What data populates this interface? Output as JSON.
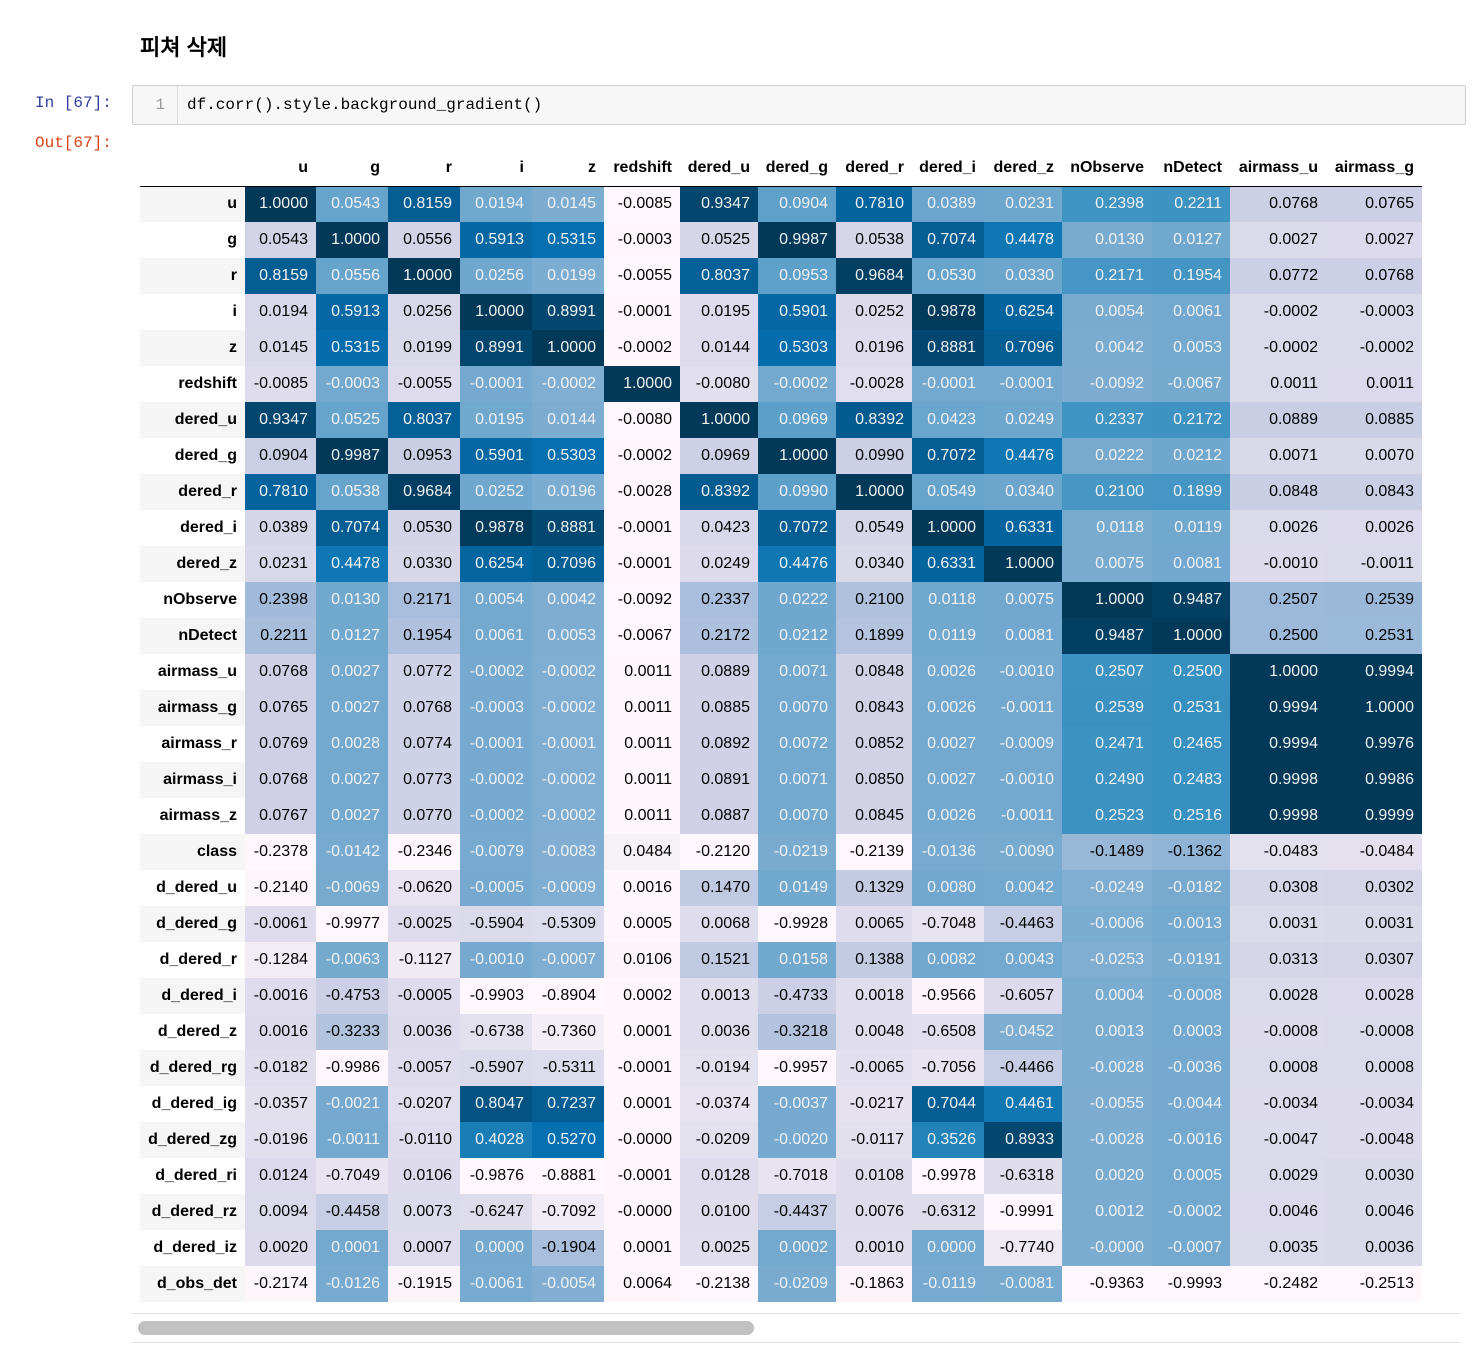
{
  "header": {
    "title": "피쳐 삭제"
  },
  "input_cell": {
    "prompt": "In [67]:",
    "line_number": "1",
    "code": "df.corr().style.background_gradient()"
  },
  "output_cell": {
    "prompt": "Out[67]:",
    "table": {
      "columns": [
        "u",
        "g",
        "r",
        "i",
        "z",
        "redshift",
        "dered_u",
        "dered_g",
        "dered_r",
        "dered_i",
        "dered_z",
        "nObserve",
        "nDetect",
        "airmass_u",
        "airmass_g"
      ],
      "rows": [
        {
          "index": "u",
          "cells": [
            "1.0000",
            "0.0543",
            "0.8159",
            "0.0194",
            "0.0145",
            "-0.0085",
            "0.9347",
            "0.0904",
            "0.7810",
            "0.0389",
            "0.0231",
            "0.2398",
            "0.2211",
            "0.0768",
            "0.0765"
          ]
        },
        {
          "index": "g",
          "cells": [
            "0.0543",
            "1.0000",
            "0.0556",
            "0.5913",
            "0.5315",
            "-0.0003",
            "0.0525",
            "0.9987",
            "0.0538",
            "0.7074",
            "0.4478",
            "0.0130",
            "0.0127",
            "0.0027",
            "0.0027"
          ]
        },
        {
          "index": "r",
          "cells": [
            "0.8159",
            "0.0556",
            "1.0000",
            "0.0256",
            "0.0199",
            "-0.0055",
            "0.8037",
            "0.0953",
            "0.9684",
            "0.0530",
            "0.0330",
            "0.2171",
            "0.1954",
            "0.0772",
            "0.0768"
          ]
        },
        {
          "index": "i",
          "cells": [
            "0.0194",
            "0.5913",
            "0.0256",
            "1.0000",
            "0.8991",
            "-0.0001",
            "0.0195",
            "0.5901",
            "0.0252",
            "0.9878",
            "0.6254",
            "0.0054",
            "0.0061",
            "-0.0002",
            "-0.0003"
          ]
        },
        {
          "index": "z",
          "cells": [
            "0.0145",
            "0.5315",
            "0.0199",
            "0.8991",
            "1.0000",
            "-0.0002",
            "0.0144",
            "0.5303",
            "0.0196",
            "0.8881",
            "0.7096",
            "0.0042",
            "0.0053",
            "-0.0002",
            "-0.0002"
          ]
        },
        {
          "index": "redshift",
          "cells": [
            "-0.0085",
            "-0.0003",
            "-0.0055",
            "-0.0001",
            "-0.0002",
            "1.0000",
            "-0.0080",
            "-0.0002",
            "-0.0028",
            "-0.0001",
            "-0.0001",
            "-0.0092",
            "-0.0067",
            "0.0011",
            "0.0011"
          ]
        },
        {
          "index": "dered_u",
          "cells": [
            "0.9347",
            "0.0525",
            "0.8037",
            "0.0195",
            "0.0144",
            "-0.0080",
            "1.0000",
            "0.0969",
            "0.8392",
            "0.0423",
            "0.0249",
            "0.2337",
            "0.2172",
            "0.0889",
            "0.0885"
          ]
        },
        {
          "index": "dered_g",
          "cells": [
            "0.0904",
            "0.9987",
            "0.0953",
            "0.5901",
            "0.5303",
            "-0.0002",
            "0.0969",
            "1.0000",
            "0.0990",
            "0.7072",
            "0.4476",
            "0.0222",
            "0.0212",
            "0.0071",
            "0.0070"
          ]
        },
        {
          "index": "dered_r",
          "cells": [
            "0.7810",
            "0.0538",
            "0.9684",
            "0.0252",
            "0.0196",
            "-0.0028",
            "0.8392",
            "0.0990",
            "1.0000",
            "0.0549",
            "0.0340",
            "0.2100",
            "0.1899",
            "0.0848",
            "0.0843"
          ]
        },
        {
          "index": "dered_i",
          "cells": [
            "0.0389",
            "0.7074",
            "0.0530",
            "0.9878",
            "0.8881",
            "-0.0001",
            "0.0423",
            "0.7072",
            "0.0549",
            "1.0000",
            "0.6331",
            "0.0118",
            "0.0119",
            "0.0026",
            "0.0026"
          ]
        },
        {
          "index": "dered_z",
          "cells": [
            "0.0231",
            "0.4478",
            "0.0330",
            "0.6254",
            "0.7096",
            "-0.0001",
            "0.0249",
            "0.4476",
            "0.0340",
            "0.6331",
            "1.0000",
            "0.0075",
            "0.0081",
            "-0.0010",
            "-0.0011"
          ]
        },
        {
          "index": "nObserve",
          "cells": [
            "0.2398",
            "0.0130",
            "0.2171",
            "0.0054",
            "0.0042",
            "-0.0092",
            "0.2337",
            "0.0222",
            "0.2100",
            "0.0118",
            "0.0075",
            "1.0000",
            "0.9487",
            "0.2507",
            "0.2539"
          ]
        },
        {
          "index": "nDetect",
          "cells": [
            "0.2211",
            "0.0127",
            "0.1954",
            "0.0061",
            "0.0053",
            "-0.0067",
            "0.2172",
            "0.0212",
            "0.1899",
            "0.0119",
            "0.0081",
            "0.9487",
            "1.0000",
            "0.2500",
            "0.2531"
          ]
        },
        {
          "index": "airmass_u",
          "cells": [
            "0.0768",
            "0.0027",
            "0.0772",
            "-0.0002",
            "-0.0002",
            "0.0011",
            "0.0889",
            "0.0071",
            "0.0848",
            "0.0026",
            "-0.0010",
            "0.2507",
            "0.2500",
            "1.0000",
            "0.9994"
          ]
        },
        {
          "index": "airmass_g",
          "cells": [
            "0.0765",
            "0.0027",
            "0.0768",
            "-0.0003",
            "-0.0002",
            "0.0011",
            "0.0885",
            "0.0070",
            "0.0843",
            "0.0026",
            "-0.0011",
            "0.2539",
            "0.2531",
            "0.9994",
            "1.0000"
          ]
        },
        {
          "index": "airmass_r",
          "cells": [
            "0.0769",
            "0.0028",
            "0.0774",
            "-0.0001",
            "-0.0001",
            "0.0011",
            "0.0892",
            "0.0072",
            "0.0852",
            "0.0027",
            "-0.0009",
            "0.2471",
            "0.2465",
            "0.9994",
            "0.9976"
          ]
        },
        {
          "index": "airmass_i",
          "cells": [
            "0.0768",
            "0.0027",
            "0.0773",
            "-0.0002",
            "-0.0002",
            "0.0011",
            "0.0891",
            "0.0071",
            "0.0850",
            "0.0027",
            "-0.0010",
            "0.2490",
            "0.2483",
            "0.9998",
            "0.9986"
          ]
        },
        {
          "index": "airmass_z",
          "cells": [
            "0.0767",
            "0.0027",
            "0.0770",
            "-0.0002",
            "-0.0002",
            "0.0011",
            "0.0887",
            "0.0070",
            "0.0845",
            "0.0026",
            "-0.0011",
            "0.2523",
            "0.2516",
            "0.9998",
            "0.9999"
          ]
        },
        {
          "index": "class",
          "cells": [
            "-0.2378",
            "-0.0142",
            "-0.2346",
            "-0.0079",
            "-0.0083",
            "0.0484",
            "-0.2120",
            "-0.0219",
            "-0.2139",
            "-0.0136",
            "-0.0090",
            "-0.1489",
            "-0.1362",
            "-0.0483",
            "-0.0484"
          ]
        },
        {
          "index": "d_dered_u",
          "cells": [
            "-0.2140",
            "-0.0069",
            "-0.0620",
            "-0.0005",
            "-0.0009",
            "0.0016",
            "0.1470",
            "0.0149",
            "0.1329",
            "0.0080",
            "0.0042",
            "-0.0249",
            "-0.0182",
            "0.0308",
            "0.0302"
          ]
        },
        {
          "index": "d_dered_g",
          "cells": [
            "-0.0061",
            "-0.9977",
            "-0.0025",
            "-0.5904",
            "-0.5309",
            "0.0005",
            "0.0068",
            "-0.9928",
            "0.0065",
            "-0.7048",
            "-0.4463",
            "-0.0006",
            "-0.0013",
            "0.0031",
            "0.0031"
          ]
        },
        {
          "index": "d_dered_r",
          "cells": [
            "-0.1284",
            "-0.0063",
            "-0.1127",
            "-0.0010",
            "-0.0007",
            "0.0106",
            "0.1521",
            "0.0158",
            "0.1388",
            "0.0082",
            "0.0043",
            "-0.0253",
            "-0.0191",
            "0.0313",
            "0.0307"
          ]
        },
        {
          "index": "d_dered_i",
          "cells": [
            "-0.0016",
            "-0.4753",
            "-0.0005",
            "-0.9903",
            "-0.8904",
            "0.0002",
            "0.0013",
            "-0.4733",
            "0.0018",
            "-0.9566",
            "-0.6057",
            "0.0004",
            "-0.0008",
            "0.0028",
            "0.0028"
          ]
        },
        {
          "index": "d_dered_z",
          "cells": [
            "0.0016",
            "-0.3233",
            "0.0036",
            "-0.6738",
            "-0.7360",
            "0.0001",
            "0.0036",
            "-0.3218",
            "0.0048",
            "-0.6508",
            "-0.0452",
            "0.0013",
            "0.0003",
            "-0.0008",
            "-0.0008"
          ]
        },
        {
          "index": "d_dered_rg",
          "cells": [
            "-0.0182",
            "-0.9986",
            "-0.0057",
            "-0.5907",
            "-0.5311",
            "-0.0001",
            "-0.0194",
            "-0.9957",
            "-0.0065",
            "-0.7056",
            "-0.4466",
            "-0.0028",
            "-0.0036",
            "0.0008",
            "0.0008"
          ]
        },
        {
          "index": "d_dered_ig",
          "cells": [
            "-0.0357",
            "-0.0021",
            "-0.0207",
            "0.8047",
            "0.7237",
            "0.0001",
            "-0.0374",
            "-0.0037",
            "-0.0217",
            "0.7044",
            "0.4461",
            "-0.0055",
            "-0.0044",
            "-0.0034",
            "-0.0034"
          ]
        },
        {
          "index": "d_dered_zg",
          "cells": [
            "-0.0196",
            "-0.0011",
            "-0.0110",
            "0.4028",
            "0.5270",
            "-0.0000",
            "-0.0209",
            "-0.0020",
            "-0.0117",
            "0.3526",
            "0.8933",
            "-0.0028",
            "-0.0016",
            "-0.0047",
            "-0.0048"
          ]
        },
        {
          "index": "d_dered_ri",
          "cells": [
            "0.0124",
            "-0.7049",
            "0.0106",
            "-0.9876",
            "-0.8881",
            "-0.0001",
            "0.0128",
            "-0.7018",
            "0.0108",
            "-0.9978",
            "-0.6318",
            "0.0020",
            "0.0005",
            "0.0029",
            "0.0030"
          ]
        },
        {
          "index": "d_dered_rz",
          "cells": [
            "0.0094",
            "-0.4458",
            "0.0073",
            "-0.6247",
            "-0.7092",
            "-0.0000",
            "0.0100",
            "-0.4437",
            "0.0076",
            "-0.6312",
            "-0.9991",
            "0.0012",
            "-0.0002",
            "0.0046",
            "0.0046"
          ]
        },
        {
          "index": "d_dered_iz",
          "cells": [
            "0.0020",
            "0.0001",
            "0.0007",
            "0.0000",
            "-0.1904",
            "0.0001",
            "0.0025",
            "0.0002",
            "0.0010",
            "0.0000",
            "-0.7740",
            "-0.0000",
            "-0.0007",
            "0.0035",
            "0.0036"
          ]
        },
        {
          "index": "d_obs_det",
          "cells": [
            "-0.2174",
            "-0.0126",
            "-0.1915",
            "-0.0061",
            "-0.0054",
            "0.0064",
            "-0.2138",
            "-0.0209",
            "-0.1863",
            "-0.0119",
            "-0.0081",
            "-0.9363",
            "-0.9993",
            "-0.2482",
            "-0.2513"
          ]
        }
      ]
    }
  }
}
